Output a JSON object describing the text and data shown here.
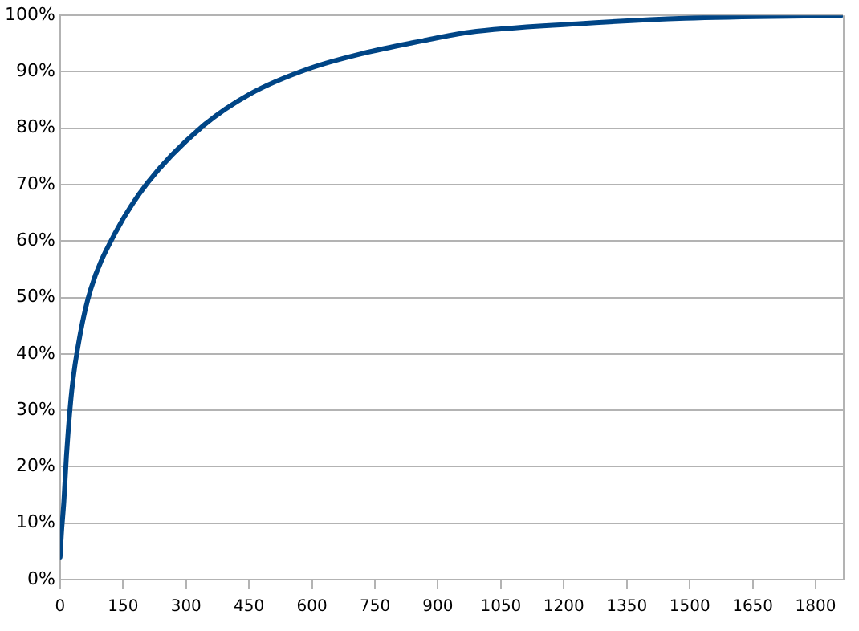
{
  "chart_data": {
    "type": "line",
    "x": [
      0,
      3,
      9,
      15,
      28,
      48,
      73,
      131,
      208,
      337,
      453,
      594,
      723,
      864,
      974,
      1231,
      1489,
      1861
    ],
    "series": [
      {
        "color": "#004586",
        "values": [
          4,
          8,
          13.9,
          21.8,
          33.7,
          43.6,
          51.5,
          61.4,
          70.3,
          80.2,
          86.1,
          90.6,
          93.3,
          95.5,
          97,
          98.5,
          99.5,
          100
        ]
      }
    ],
    "xlim": [
      0,
      1865
    ],
    "xticks": [
      0,
      150,
      300,
      450,
      600,
      750,
      900,
      1050,
      1200,
      1350,
      1500,
      1650,
      1800
    ],
    "ylim": [
      0,
      100
    ],
    "yticks": [
      {
        "value": 0,
        "label": "0%"
      },
      {
        "value": 10,
        "label": "10%"
      },
      {
        "value": 20,
        "label": "20%"
      },
      {
        "value": 30,
        "label": "30%"
      },
      {
        "value": 40,
        "label": "40%"
      },
      {
        "value": 50,
        "label": "50%"
      },
      {
        "value": 60,
        "label": "60%"
      },
      {
        "value": 70,
        "label": "70%"
      },
      {
        "value": 80,
        "label": "80%"
      },
      {
        "value": 90,
        "label": "90%"
      },
      {
        "value": 100,
        "label": "100%"
      }
    ],
    "grid": "y",
    "legend": false,
    "marker": "none",
    "line_style": "solid"
  }
}
